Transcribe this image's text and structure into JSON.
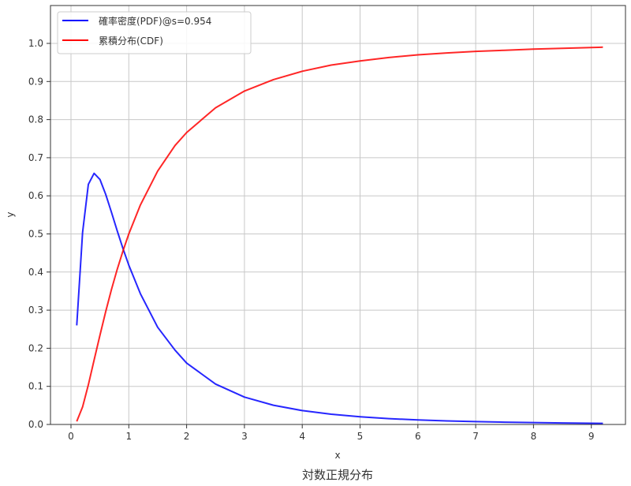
{
  "chart_data": {
    "type": "line",
    "title": "対数正規分布",
    "xlabel": "x",
    "ylabel": "y",
    "xlim": [
      -0.35,
      9.65
    ],
    "ylim": [
      0.0,
      1.09
    ],
    "xticks": [
      "0",
      "1",
      "2",
      "3",
      "4",
      "5",
      "6",
      "7",
      "8",
      "9"
    ],
    "yticks": [
      "0.0",
      "0.1",
      "0.2",
      "0.3",
      "0.4",
      "0.5",
      "0.6",
      "0.7",
      "0.8",
      "0.9",
      "1.0"
    ],
    "grid": true,
    "legend_position": "upper left",
    "x": [
      0.1,
      0.2,
      0.3,
      0.4,
      0.5,
      0.6,
      0.7,
      0.8,
      0.9,
      1.0,
      1.2,
      1.5,
      1.8,
      2.0,
      2.5,
      3.0,
      3.5,
      4.0,
      4.5,
      5.0,
      5.5,
      6.0,
      6.5,
      7.0,
      7.5,
      8.0,
      8.5,
      9.2
    ],
    "series": [
      {
        "name": "確率密度(PDF)@s=0.954",
        "color": "#0000ff",
        "values": [
          0.26,
          0.504,
          0.63,
          0.659,
          0.643,
          0.604,
          0.557,
          0.508,
          0.461,
          0.418,
          0.343,
          0.255,
          0.195,
          0.161,
          0.106,
          0.0718,
          0.0505,
          0.0364,
          0.027,
          0.0202,
          0.0154,
          0.0119,
          0.0094,
          0.0075,
          0.006,
          0.0049,
          0.004,
          0.003
        ]
      },
      {
        "name": "累積分布(CDF)",
        "color": "#ff0000",
        "values": [
          0.008,
          0.046,
          0.104,
          0.169,
          0.234,
          0.296,
          0.354,
          0.407,
          0.456,
          0.5,
          0.576,
          0.665,
          0.732,
          0.766,
          0.831,
          0.875,
          0.905,
          0.927,
          0.943,
          0.954,
          0.963,
          0.97,
          0.975,
          0.979,
          0.982,
          0.985,
          0.987,
          0.99
        ]
      }
    ]
  }
}
